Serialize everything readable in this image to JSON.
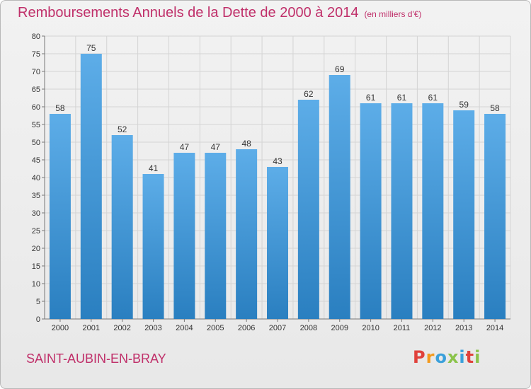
{
  "header": {
    "title": "Remboursements Annuels de la Dette de 2000 à 2014",
    "unit": "(en milliers d'€)"
  },
  "footer": {
    "city": "SAINT-AUBIN-EN-BRAY",
    "logo": "Proxiti"
  },
  "colors": {
    "title": "#c0306a",
    "bar_light": "#5dade8",
    "bar_dark": "#2a7fc0",
    "logo_letters": [
      "#e0413b",
      "#f39a1e",
      "#3aa0db",
      "#8bc34a",
      "#3aa0db",
      "#e0413b",
      "#8bc34a"
    ]
  },
  "chart_data": {
    "type": "bar",
    "title": "Remboursements Annuels de la Dette de 2000 à 2014",
    "categories": [
      "2000",
      "2001",
      "2002",
      "2003",
      "2004",
      "2005",
      "2006",
      "2007",
      "2008",
      "2009",
      "2010",
      "2011",
      "2012",
      "2013",
      "2014"
    ],
    "values": [
      58,
      75,
      52,
      41,
      47,
      47,
      48,
      43,
      62,
      69,
      61,
      61,
      61,
      59,
      58
    ],
    "ylim": [
      0,
      80
    ],
    "ytick_step": 5,
    "grid": true,
    "xlabel": "",
    "ylabel": ""
  }
}
